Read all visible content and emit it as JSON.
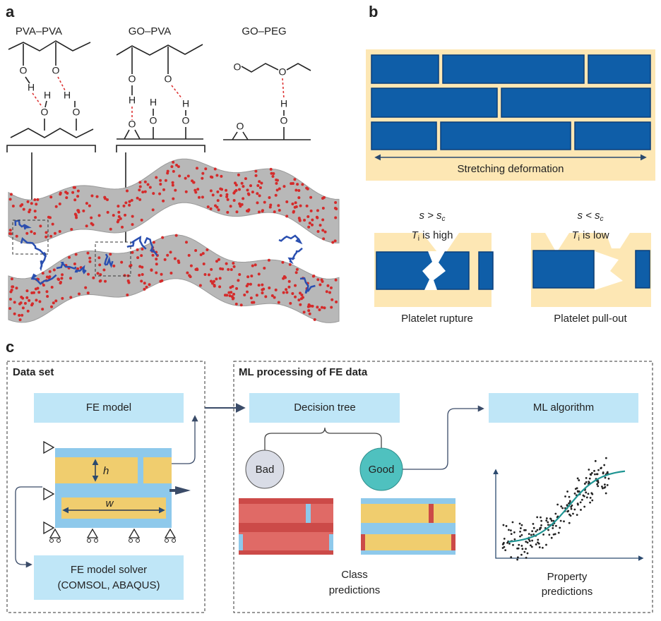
{
  "panel_a": {
    "label": "a",
    "structures": [
      {
        "title": "PVA–PVA",
        "atoms": [
          "O",
          "O",
          "H",
          "H",
          "H",
          "O",
          "O"
        ]
      },
      {
        "title": "GO–PVA",
        "atoms": [
          "O",
          "O",
          "H",
          "H",
          "H",
          "O",
          "O",
          "O"
        ]
      },
      {
        "title": "GO–PEG",
        "atoms": [
          "O",
          "O",
          "H",
          "O",
          "O"
        ]
      }
    ]
  },
  "panel_b": {
    "label": "b",
    "caption": "Stretching deformation",
    "cases": [
      {
        "condition": {
          "text": "s > s",
          "sub": "c"
        },
        "toughness": {
          "text": "T",
          "sub": "i",
          "rest": " is high"
        },
        "caption": "Platelet rupture"
      },
      {
        "condition": {
          "text": "s < s",
          "sub": "c"
        },
        "toughness": {
          "text": "T",
          "sub": "i",
          "rest": " is low"
        },
        "caption": "Platelet pull-out"
      }
    ]
  },
  "panel_c": {
    "label": "c",
    "data_set": {
      "title": "Data set",
      "fe_model": "FE model",
      "height_label": "h",
      "width_label": "w",
      "solver": [
        "FE model solver",
        "(COMSOL, ABAQUS)"
      ]
    },
    "ml": {
      "title": "ML processing of FE data",
      "decision_tree": "Decision tree",
      "classes": [
        "Bad",
        "Good"
      ],
      "class_caption": [
        "Class",
        "predictions"
      ],
      "algorithm": "ML algorithm",
      "property_caption": [
        "Property",
        "predictions"
      ]
    }
  }
}
